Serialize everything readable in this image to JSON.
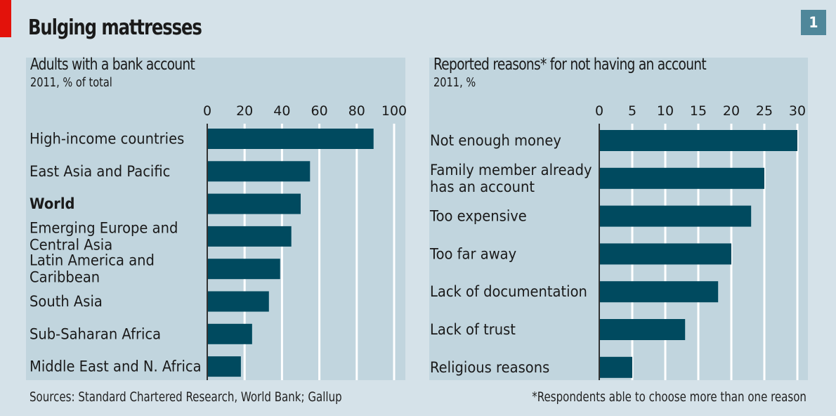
{
  "header": {
    "title": "Bulging mattresses",
    "chart_number": "1"
  },
  "colors": {
    "background": "#d5e2e9",
    "panel": "#c1d5de",
    "bar": "#004a5f",
    "accent_red": "#e3120b",
    "badge": "#4f879a",
    "gridline": "#ffffff",
    "axis": "#333333"
  },
  "chart_data": [
    {
      "type": "bar",
      "orientation": "horizontal",
      "title": "Adults with a bank account",
      "subtitle": "2011, % of total",
      "xlabel": "",
      "ylabel": "",
      "xlim": [
        0,
        100
      ],
      "ticks": [
        0,
        20,
        40,
        60,
        80,
        100
      ],
      "tick_labels": [
        "0",
        "20",
        "40",
        "60",
        "80",
        "100"
      ],
      "grid": true,
      "categories": [
        "High-income countries",
        "East Asia and Pacific",
        "World",
        "Emerging Europe and Central Asia",
        "Latin America and Caribbean",
        "South Asia",
        "Sub-Saharan Africa",
        "Middle East and N. Africa"
      ],
      "category_lines": [
        [
          "High-income countries"
        ],
        [
          "East Asia and Pacific"
        ],
        [
          "World"
        ],
        [
          "Emerging Europe and",
          "Central Asia"
        ],
        [
          "Latin America and",
          "Caribbean"
        ],
        [
          "South Asia"
        ],
        [
          "Sub-Saharan Africa"
        ],
        [
          "Middle East and N. Africa"
        ]
      ],
      "bold_categories": [
        "World"
      ],
      "values": [
        89,
        55,
        50,
        45,
        39,
        33,
        24,
        18
      ]
    },
    {
      "type": "bar",
      "orientation": "horizontal",
      "title": "Reported reasons* for not having an account",
      "subtitle": "2011, %",
      "xlabel": "",
      "ylabel": "",
      "xlim": [
        0,
        30
      ],
      "ticks": [
        0,
        5,
        10,
        15,
        20,
        25,
        30
      ],
      "tick_labels": [
        "0",
        "5",
        "10",
        "15",
        "20",
        "25",
        "30"
      ],
      "grid": true,
      "categories": [
        "Not enough money",
        "Family member already has an account",
        "Too expensive",
        "Too far away",
        "Lack of documentation",
        "Lack of trust",
        "Religious reasons"
      ],
      "category_lines": [
        [
          "Not enough money"
        ],
        [
          "Family member already",
          "has an account"
        ],
        [
          "Too expensive"
        ],
        [
          "Too far away"
        ],
        [
          "Lack of documentation"
        ],
        [
          "Lack of trust"
        ],
        [
          "Religious reasons"
        ]
      ],
      "bold_categories": [],
      "values": [
        30,
        25,
        23,
        20,
        18,
        13,
        5
      ]
    }
  ],
  "footer": {
    "source": "Sources: Standard Chartered Research, World Bank; Gallup",
    "footnote": "*Respondents able to choose more than one reason"
  }
}
